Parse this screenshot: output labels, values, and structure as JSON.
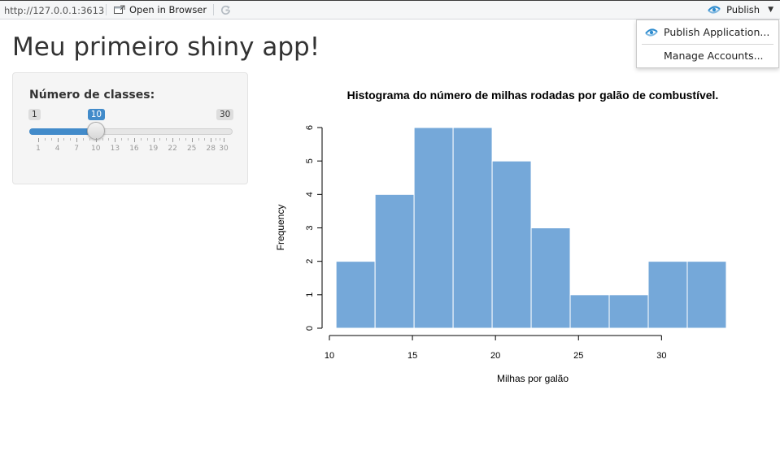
{
  "toolbar": {
    "url": "http://127.0.0.1:3613",
    "open_in_browser": "Open in Browser",
    "publish": "Publish"
  },
  "publish_menu": {
    "items": [
      {
        "label": "Publish Application..."
      },
      {
        "label": "Manage Accounts..."
      }
    ]
  },
  "page": {
    "title": "Meu primeiro shiny app!"
  },
  "slider": {
    "label": "Número de classes:",
    "min": "1",
    "max": "30",
    "value": "10",
    "min_num": 1,
    "max_num": 30,
    "value_num": 10,
    "ticks": [
      "1",
      "4",
      "7",
      "10",
      "13",
      "16",
      "19",
      "22",
      "25",
      "28",
      "30"
    ],
    "accent_color": "#428bca"
  },
  "chart_data": {
    "type": "bar",
    "title": "Histograma do número de milhas rodadas por galão de combustível.",
    "xlabel": "Milhas por galão",
    "ylabel": "Frequency",
    "bin_edges": [
      10.4,
      12.75,
      15.1,
      17.45,
      19.8,
      22.15,
      24.5,
      26.85,
      29.2,
      31.55,
      33.9
    ],
    "values": [
      2,
      4,
      6,
      6,
      5,
      3,
      1,
      1,
      2,
      2
    ],
    "xlim": [
      10,
      34
    ],
    "ylim": [
      0,
      6
    ],
    "xticks": [
      10,
      15,
      20,
      25,
      30
    ],
    "yticks": [
      0,
      1,
      2,
      3,
      4,
      5,
      6
    ],
    "bar_color": "#75a8d9",
    "grid": false
  }
}
